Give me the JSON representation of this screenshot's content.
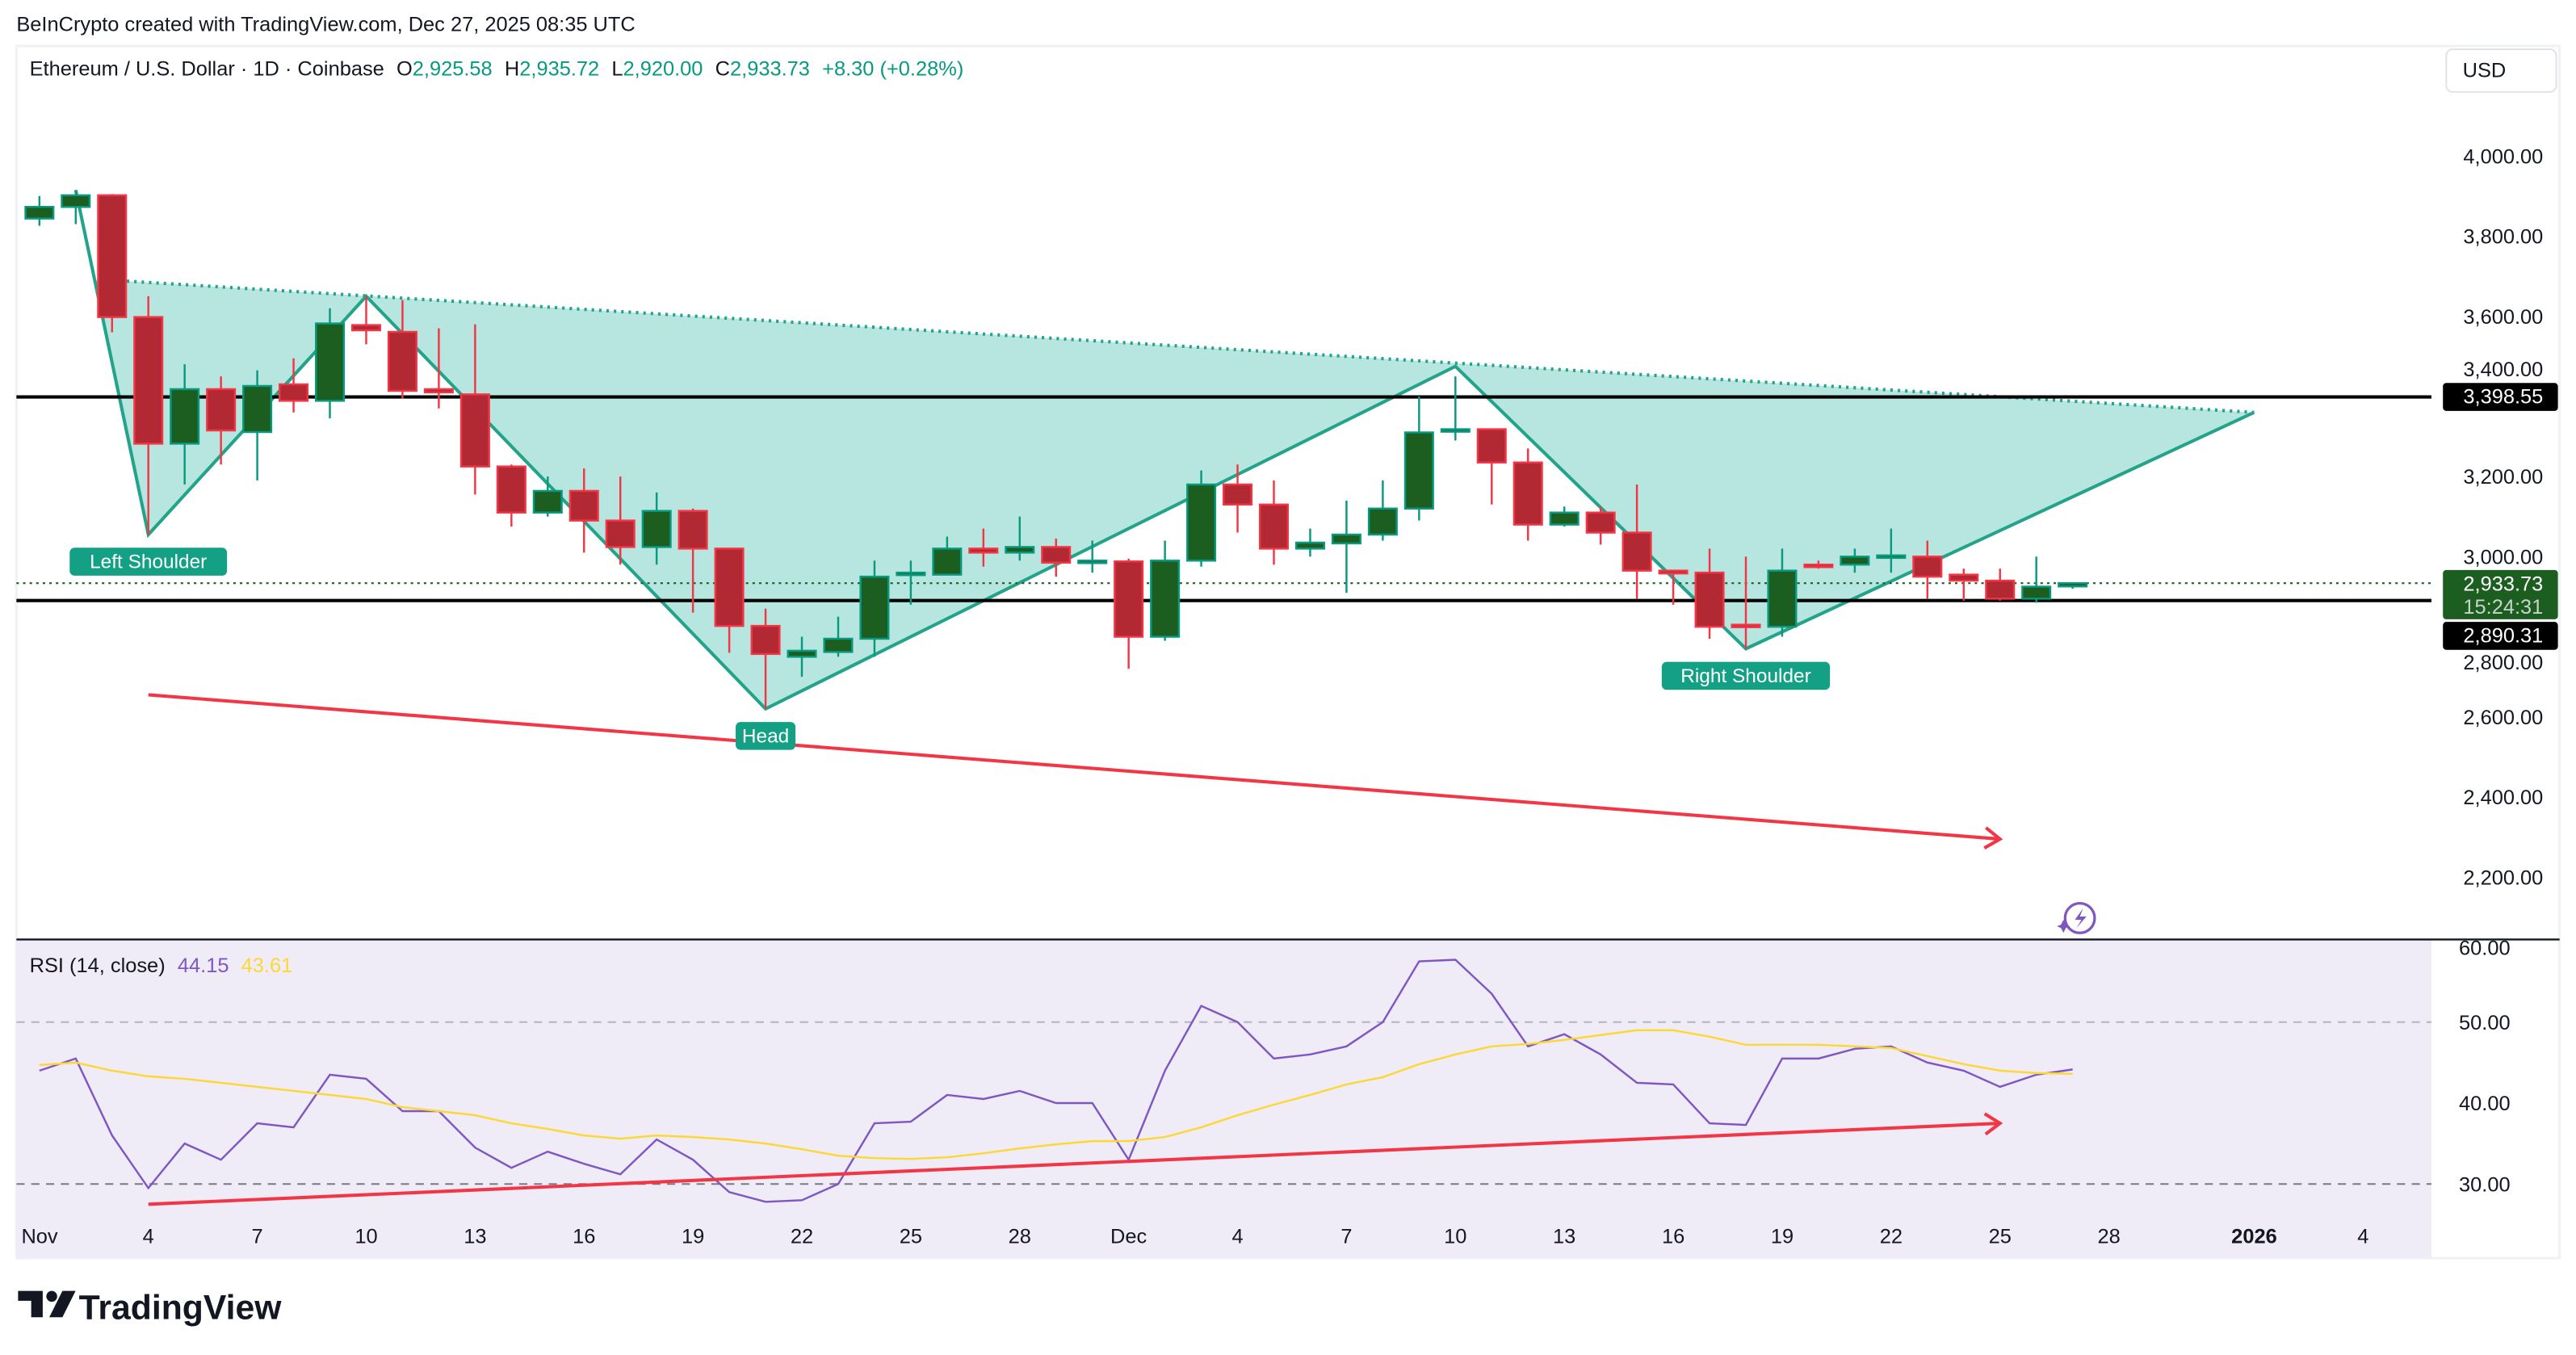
{
  "attribution": "BeInCrypto created with TradingView.com, Dec 27, 2025 08:35 UTC",
  "legend": {
    "symbol": "Ethereum / U.S. Dollar · 1D · Coinbase",
    "open_label": "O",
    "open": "2,925.58",
    "high_label": "H",
    "high": "2,935.72",
    "low_label": "L",
    "low": "2,920.00",
    "close_label": "C",
    "close": "2,933.73",
    "change": "+8.30 (+0.28%)"
  },
  "currency_button": "USD",
  "price_labels": {
    "resistance": "3,398.55",
    "last_price": "2,933.73",
    "countdown": "15:24:31",
    "support": "2,890.31"
  },
  "pattern_labels": {
    "left_shoulder": "Left Shoulder",
    "head": "Head",
    "right_shoulder": "Right Shoulder"
  },
  "rsi_legend": {
    "name": "RSI (14, close)",
    "rsi": "44.15",
    "ma": "43.61"
  },
  "logo_text": "TradingView",
  "colors": {
    "up_body": "#1b5e20",
    "up_border": "#089981",
    "down_body": "#b22833",
    "down_border": "#f23645",
    "pattern_fill": "#b2e5dd",
    "pattern_line": "#22a38a",
    "label_bg": "#13a085",
    "trend_arrow": "#f23645",
    "rsi_line": "#7e57c2",
    "rsi_ma": "#fdd835",
    "rsi_bg": "#efebf7",
    "level_line": "#000000",
    "last_price_bg": "#1b5e20"
  },
  "icons": {
    "alert": "lightning-sparkle-icon",
    "logo": "tradingview-logo-icon"
  },
  "chart_data": [
    {
      "type": "candlestick",
      "title": "",
      "ylim": [
        2130,
        4150
      ],
      "y_ticks": [
        "4,000.00",
        "3,800.00",
        "3,600.00",
        "3,400.00",
        "3,200.00",
        "3,000.00",
        "2,800.00",
        "2,600.00",
        "2,400.00",
        "2,200.00"
      ],
      "y_tick_values": [
        4000,
        3800,
        3600,
        3400,
        3200,
        3000,
        2800,
        2600,
        2400,
        2200
      ],
      "x_ticks": [
        {
          "date": "2025-11-01",
          "label": "Nov"
        },
        {
          "date": "2025-11-04",
          "label": "4"
        },
        {
          "date": "2025-11-07",
          "label": "7"
        },
        {
          "date": "2025-11-10",
          "label": "10"
        },
        {
          "date": "2025-11-13",
          "label": "13"
        },
        {
          "date": "2025-11-16",
          "label": "16"
        },
        {
          "date": "2025-11-19",
          "label": "19"
        },
        {
          "date": "2025-11-22",
          "label": "22"
        },
        {
          "date": "2025-11-25",
          "label": "25"
        },
        {
          "date": "2025-11-28",
          "label": "28"
        },
        {
          "date": "2025-12-01",
          "label": "Dec"
        },
        {
          "date": "2025-12-04",
          "label": "4"
        },
        {
          "date": "2025-12-07",
          "label": "7"
        },
        {
          "date": "2025-12-10",
          "label": "10"
        },
        {
          "date": "2025-12-13",
          "label": "13"
        },
        {
          "date": "2025-12-16",
          "label": "16"
        },
        {
          "date": "2025-12-19",
          "label": "19"
        },
        {
          "date": "2025-12-22",
          "label": "22"
        },
        {
          "date": "2025-12-25",
          "label": "25"
        },
        {
          "date": "2025-12-28",
          "label": "28"
        },
        {
          "date": "2026-01-01",
          "label": "2026"
        },
        {
          "date": "2026-01-04",
          "label": "4"
        }
      ],
      "grid": false,
      "ohlc_columns": [
        "date",
        "open",
        "high",
        "low",
        "close"
      ],
      "ohlc": [
        [
          "2025-11-01",
          3844,
          3900,
          3826,
          3873
        ],
        [
          "2025-11-02",
          3873,
          3915,
          3830,
          3902
        ],
        [
          "2025-11-03",
          3902,
          3905,
          3560,
          3598
        ],
        [
          "2025-11-04",
          3598,
          3650,
          3055,
          3282
        ],
        [
          "2025-11-05",
          3282,
          3480,
          3180,
          3418
        ],
        [
          "2025-11-06",
          3418,
          3450,
          3230,
          3315
        ],
        [
          "2025-11-07",
          3311,
          3465,
          3190,
          3426
        ],
        [
          "2025-11-08",
          3430,
          3495,
          3360,
          3389
        ],
        [
          "2025-11-09",
          3389,
          3620,
          3345,
          3582
        ],
        [
          "2025-11-10",
          3578,
          3650,
          3530,
          3565
        ],
        [
          "2025-11-11",
          3561,
          3640,
          3395,
          3414
        ],
        [
          "2025-11-12",
          3418,
          3570,
          3370,
          3410
        ],
        [
          "2025-11-13",
          3405,
          3580,
          3155,
          3225
        ],
        [
          "2025-11-14",
          3225,
          3230,
          3075,
          3110
        ],
        [
          "2025-11-15",
          3110,
          3200,
          3100,
          3164
        ],
        [
          "2025-11-16",
          3164,
          3220,
          3010,
          3090
        ],
        [
          "2025-11-17",
          3090,
          3200,
          2980,
          3024
        ],
        [
          "2025-11-18",
          3024,
          3160,
          2980,
          3114
        ],
        [
          "2025-11-19",
          3114,
          3120,
          2860,
          3020
        ],
        [
          "2025-11-20",
          3020,
          3020,
          2760,
          2827
        ],
        [
          "2025-11-21",
          2827,
          2870,
          2620,
          2757
        ],
        [
          "2025-11-22",
          2750,
          2800,
          2700,
          2765
        ],
        [
          "2025-11-23",
          2762,
          2850,
          2750,
          2795
        ],
        [
          "2025-11-24",
          2795,
          2990,
          2750,
          2950
        ],
        [
          "2025-11-25",
          2955,
          2990,
          2880,
          2960
        ],
        [
          "2025-11-26",
          2955,
          3050,
          2955,
          3020
        ],
        [
          "2025-11-27",
          3020,
          3070,
          2975,
          3010
        ],
        [
          "2025-11-28",
          3010,
          3100,
          2990,
          3024
        ],
        [
          "2025-11-29",
          3024,
          3045,
          2950,
          2985
        ],
        [
          "2025-11-30",
          2985,
          3040,
          2960,
          2990
        ],
        [
          "2025-12-01",
          2988,
          2995,
          2720,
          2800
        ],
        [
          "2025-12-02",
          2800,
          3040,
          2790,
          2990
        ],
        [
          "2025-12-03",
          2990,
          3215,
          2975,
          3180
        ],
        [
          "2025-12-04",
          3180,
          3230,
          3060,
          3130
        ],
        [
          "2025-12-05",
          3130,
          3190,
          2980,
          3020
        ],
        [
          "2025-12-06",
          3020,
          3070,
          3000,
          3035
        ],
        [
          "2025-12-07",
          3033,
          3140,
          2910,
          3055
        ],
        [
          "2025-12-08",
          3055,
          3190,
          3040,
          3120
        ],
        [
          "2025-12-09",
          3120,
          3400,
          3090,
          3310
        ],
        [
          "2025-12-10",
          3312,
          3450,
          3290,
          3318
        ],
        [
          "2025-12-11",
          3318,
          3320,
          3130,
          3235
        ],
        [
          "2025-12-12",
          3235,
          3270,
          3040,
          3080
        ],
        [
          "2025-12-13",
          3080,
          3125,
          3075,
          3110
        ],
        [
          "2025-12-14",
          3110,
          3125,
          3030,
          3060
        ],
        [
          "2025-12-15",
          3060,
          3180,
          2895,
          2965
        ],
        [
          "2025-12-16",
          2965,
          2965,
          2880,
          2958
        ],
        [
          "2025-12-17",
          2960,
          3020,
          2795,
          2825
        ],
        [
          "2025-12-18",
          2830,
          3000,
          2770,
          2825
        ],
        [
          "2025-12-19",
          2825,
          3020,
          2800,
          2965
        ],
        [
          "2025-12-20",
          2980,
          2990,
          2970,
          2975
        ],
        [
          "2025-12-21",
          2980,
          3020,
          2960,
          3000
        ],
        [
          "2025-12-22",
          2998,
          3070,
          2960,
          3003
        ],
        [
          "2025-12-23",
          3000,
          3040,
          2895,
          2950
        ],
        [
          "2025-12-24",
          2955,
          2970,
          2890,
          2940
        ],
        [
          "2025-12-25",
          2940,
          2970,
          2890,
          2895
        ],
        [
          "2025-12-26",
          2895,
          3000,
          2885,
          2925
        ],
        [
          "2025-12-27",
          2925.58,
          2935.72,
          2920.0,
          2933.73
        ]
      ],
      "horizontal_levels": [
        3398.55,
        2890.31
      ],
      "last_price": 2933.73,
      "head_and_shoulders": {
        "zigzag": [
          [
            "2025-11-02",
            3915
          ],
          [
            "2025-11-04",
            3055
          ],
          [
            "2025-11-10",
            3650
          ],
          [
            "2025-11-21",
            2620
          ],
          [
            "2025-12-10",
            3475
          ],
          [
            "2025-12-18",
            2770
          ],
          [
            "2026-01-01",
            3360
          ]
        ],
        "upper_line": [
          [
            "2025-11-03",
            3690
          ],
          [
            "2026-01-01",
            3360
          ]
        ],
        "labels": [
          {
            "key": "left_shoulder",
            "date": "2025-11-04",
            "price": 3055
          },
          {
            "key": "head",
            "date": "2025-11-21",
            "price": 2620
          },
          {
            "key": "right_shoulder",
            "date": "2025-12-18",
            "price": 2770
          }
        ]
      },
      "trend_arrow": [
        [
          "2025-11-04",
          2655
        ],
        [
          "2025-12-25",
          2295
        ]
      ]
    },
    {
      "type": "line",
      "title": "RSI (14, close)",
      "ylim": [
        26,
        60.2
      ],
      "y_ticks": [
        "60.00",
        "50.00",
        "40.00",
        "30.00"
      ],
      "y_tick_values": [
        60,
        50,
        40,
        30
      ],
      "bands": [
        50,
        30
      ],
      "series": [
        {
          "name": "RSI",
          "values": [
            44,
            45.5,
            36,
            29.5,
            35,
            33,
            37.5,
            37,
            43.5,
            43,
            39,
            39,
            34.5,
            32,
            34,
            32.5,
            31.2,
            35.5,
            33,
            29,
            27.8,
            28,
            30,
            37.5,
            37.7,
            41,
            40.5,
            41.5,
            40,
            40,
            33,
            44,
            52,
            50,
            45.5,
            46,
            47,
            50,
            57.5,
            57.7,
            53.5,
            47,
            48.5,
            46,
            42.5,
            42.3,
            37.5,
            37.3,
            45.5,
            45.5,
            46.7,
            47,
            45,
            44,
            42,
            43.5,
            44.15
          ]
        },
        {
          "name": "MA",
          "values": [
            44.7,
            45,
            44,
            43.3,
            43,
            42.5,
            42,
            41.5,
            41,
            40.5,
            39.5,
            39,
            38.5,
            37.5,
            36.8,
            36,
            35.6,
            36,
            35.8,
            35.5,
            35,
            34.3,
            33.5,
            33.2,
            33.1,
            33.3,
            33.8,
            34.4,
            34.9,
            35.3,
            35.3,
            35.8,
            37,
            38.5,
            39.8,
            41,
            42.3,
            43.2,
            44.8,
            46,
            47,
            47.3,
            47.8,
            48.4,
            49,
            49,
            48.2,
            47.2,
            47.2,
            47.2,
            47,
            46.8,
            45.8,
            44.8,
            44,
            43.7,
            43.61
          ]
        }
      ],
      "trend_arrow": [
        [
          "2025-11-04",
          27.5
        ],
        [
          "2025-12-25",
          37.5
        ]
      ]
    }
  ]
}
